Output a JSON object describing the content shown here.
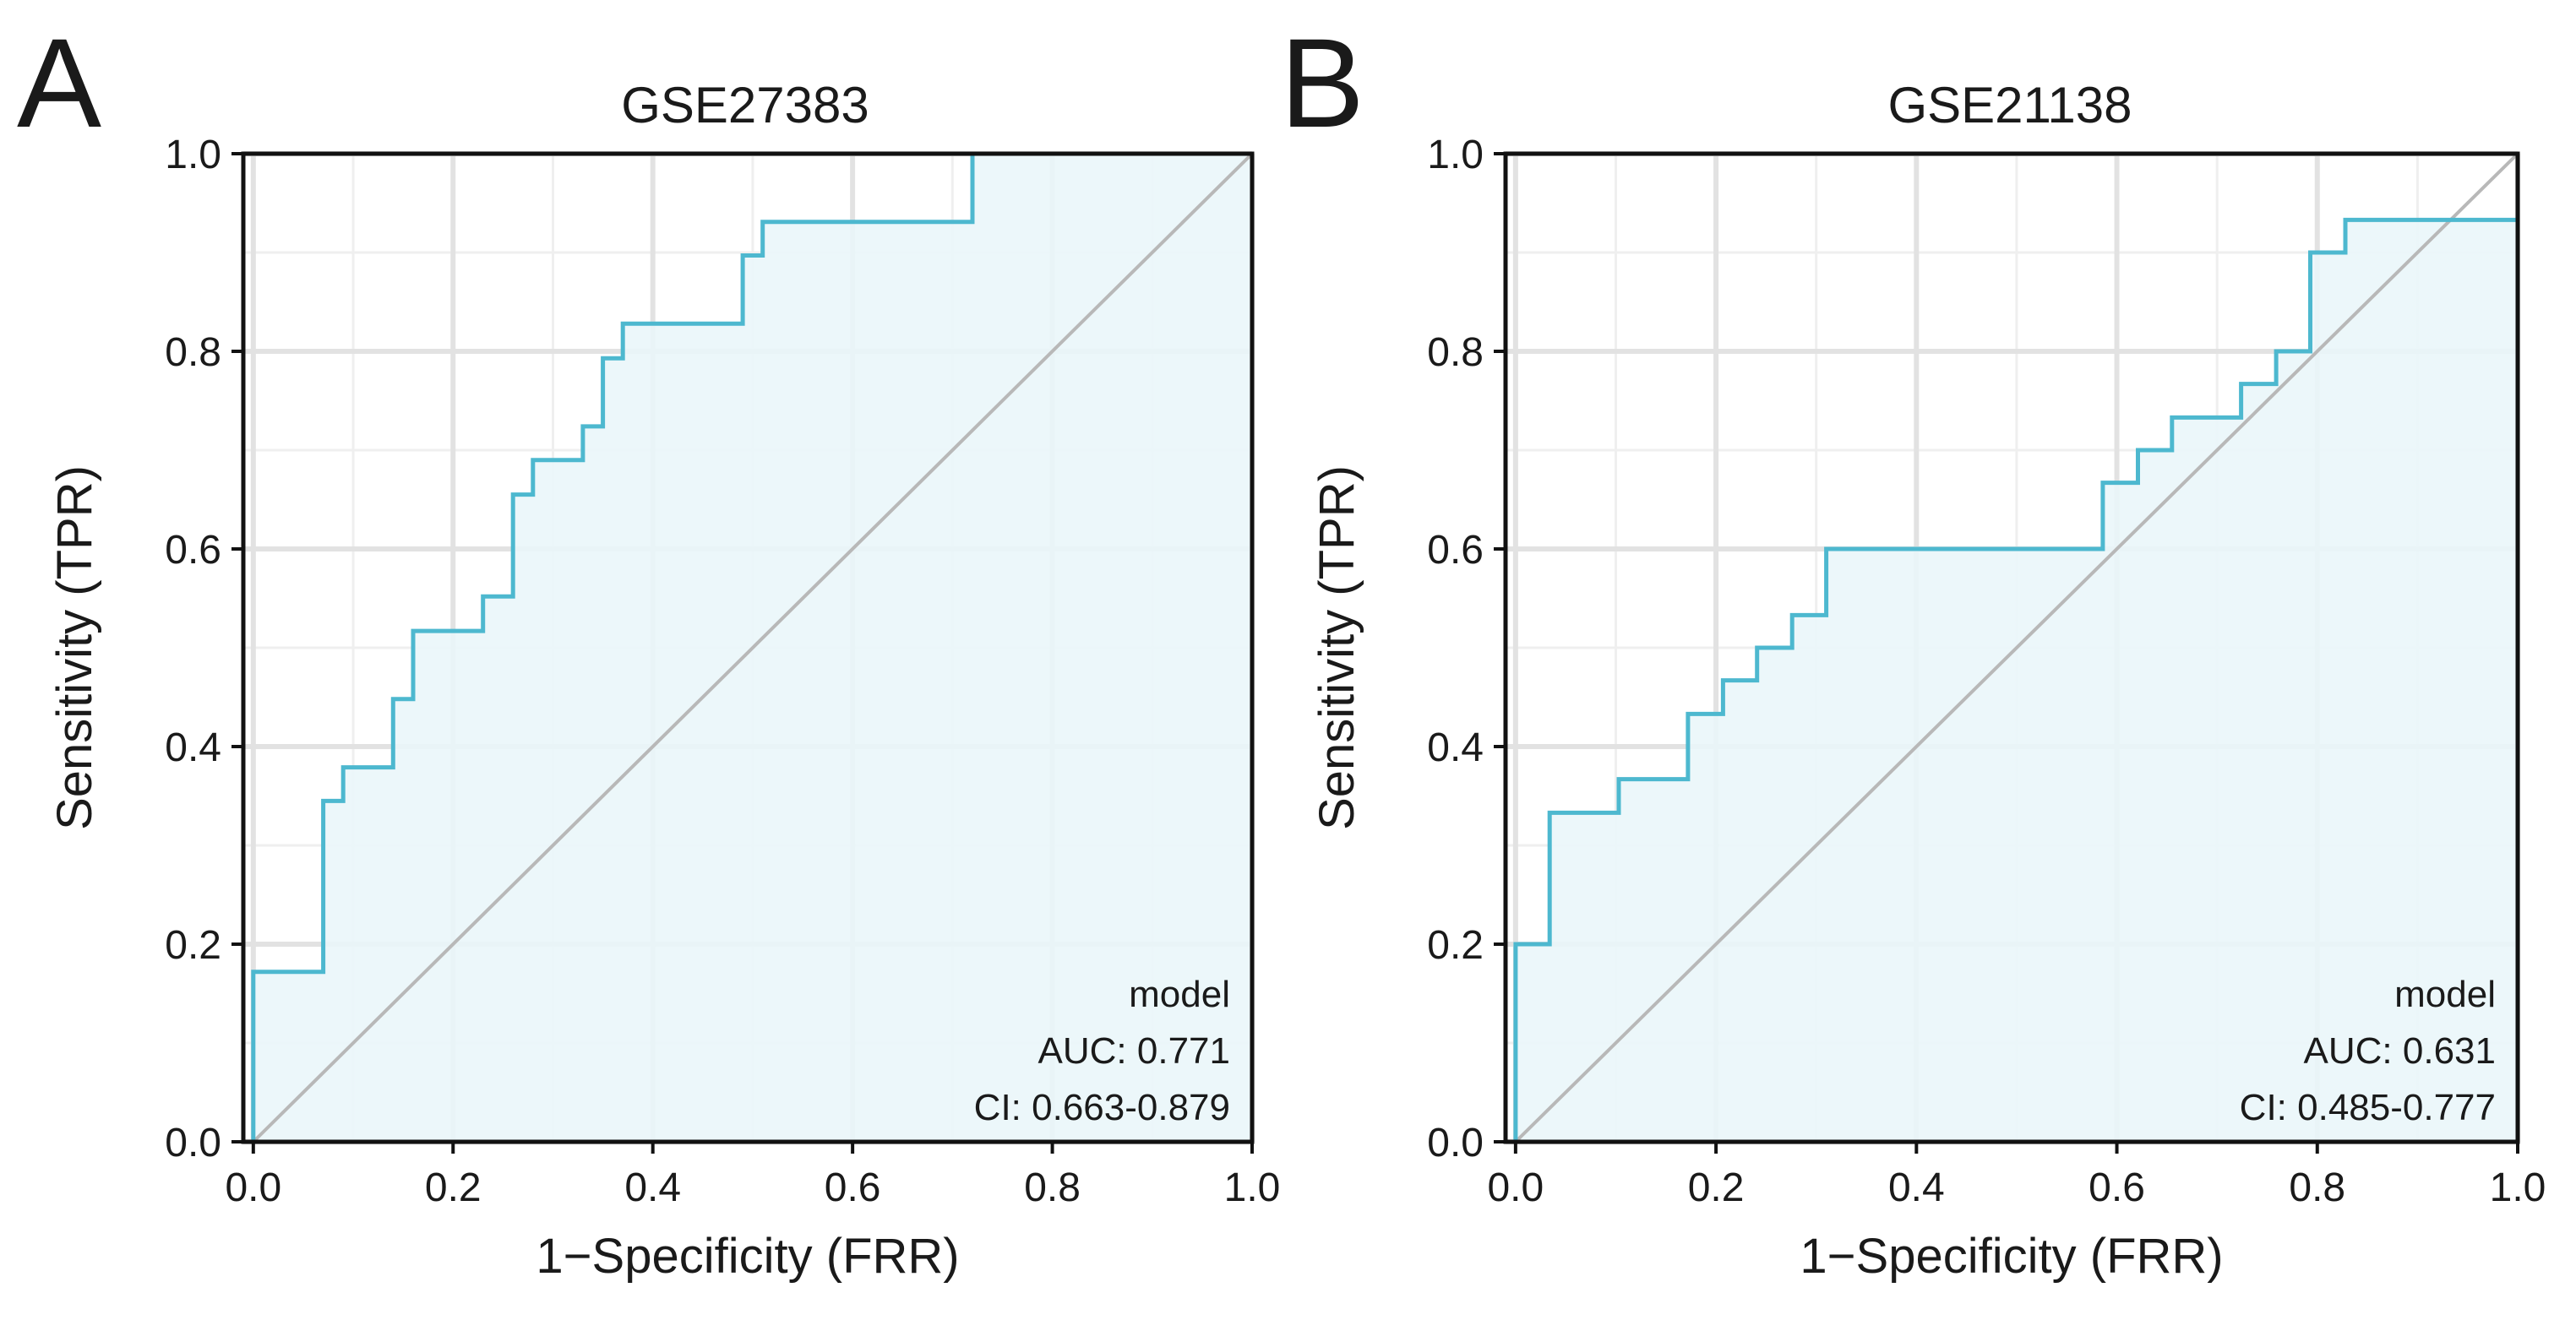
{
  "chart_data": [
    {
      "type": "line",
      "panel_label": "A",
      "title": "GSE27383",
      "xlabel": "1−Specificity (FRR)",
      "ylabel": "Sensitivity (TPR)",
      "xlim": [
        -0.01,
        1.0
      ],
      "ylim": [
        0.0,
        1.0
      ],
      "xticks": [
        "0.0",
        "0.2",
        "0.4",
        "0.6",
        "0.8",
        "1.0"
      ],
      "yticks": [
        "0.0",
        "0.2",
        "0.4",
        "0.6",
        "0.8",
        "1.0"
      ],
      "grid": true,
      "curve_color": "#4db8cf",
      "fill_color": "#eaf6f9",
      "diagonal_color": "#b8b8b8",
      "series": [
        {
          "name": "model",
          "x": [
            0.0,
            0.0,
            0.07,
            0.07,
            0.09,
            0.09,
            0.14,
            0.14,
            0.16,
            0.16,
            0.23,
            0.23,
            0.26,
            0.26,
            0.28,
            0.28,
            0.33,
            0.33,
            0.35,
            0.35,
            0.37,
            0.37,
            0.49,
            0.49,
            0.51,
            0.51,
            0.72,
            0.72,
            1.0
          ],
          "y": [
            0.0,
            0.172,
            0.172,
            0.345,
            0.345,
            0.379,
            0.379,
            0.448,
            0.448,
            0.517,
            0.517,
            0.552,
            0.552,
            0.655,
            0.655,
            0.69,
            0.69,
            0.724,
            0.724,
            0.793,
            0.793,
            0.828,
            0.828,
            0.897,
            0.897,
            0.931,
            0.931,
            1.0,
            1.0
          ]
        }
      ],
      "legend": {
        "position": "bottom-right",
        "name": "model",
        "auc": "AUC: 0.771",
        "ci": "CI: 0.663-0.879"
      }
    },
    {
      "type": "line",
      "panel_label": "B",
      "title": "GSE21138",
      "xlabel": "1−Specificity (FRR)",
      "ylabel": "Sensitivity (TPR)",
      "xlim": [
        -0.01,
        1.0
      ],
      "ylim": [
        0.0,
        1.0
      ],
      "xticks": [
        "0.0",
        "0.2",
        "0.4",
        "0.6",
        "0.8",
        "1.0"
      ],
      "yticks": [
        "0.0",
        "0.2",
        "0.4",
        "0.6",
        "0.8",
        "1.0"
      ],
      "grid": true,
      "curve_color": "#4db8cf",
      "fill_color": "#eaf6f9",
      "diagonal_color": "#b8b8b8",
      "series": [
        {
          "name": "model",
          "x": [
            0.0,
            0.0,
            0.034,
            0.034,
            0.103,
            0.103,
            0.172,
            0.172,
            0.207,
            0.207,
            0.241,
            0.241,
            0.276,
            0.276,
            0.31,
            0.31,
            0.586,
            0.586,
            0.621,
            0.621,
            0.655,
            0.655,
            0.724,
            0.724,
            0.759,
            0.759,
            0.793,
            0.793,
            0.828,
            0.828,
            1.0
          ],
          "y": [
            0.0,
            0.2,
            0.2,
            0.333,
            0.333,
            0.367,
            0.367,
            0.433,
            0.433,
            0.467,
            0.467,
            0.5,
            0.5,
            0.533,
            0.533,
            0.6,
            0.6,
            0.667,
            0.667,
            0.7,
            0.7,
            0.733,
            0.733,
            0.767,
            0.767,
            0.8,
            0.8,
            0.9,
            0.9,
            0.933,
            0.933
          ]
        }
      ],
      "legend": {
        "position": "bottom-right",
        "name": "model",
        "auc": "AUC: 0.631",
        "ci": "CI: 0.485-0.777"
      }
    }
  ]
}
